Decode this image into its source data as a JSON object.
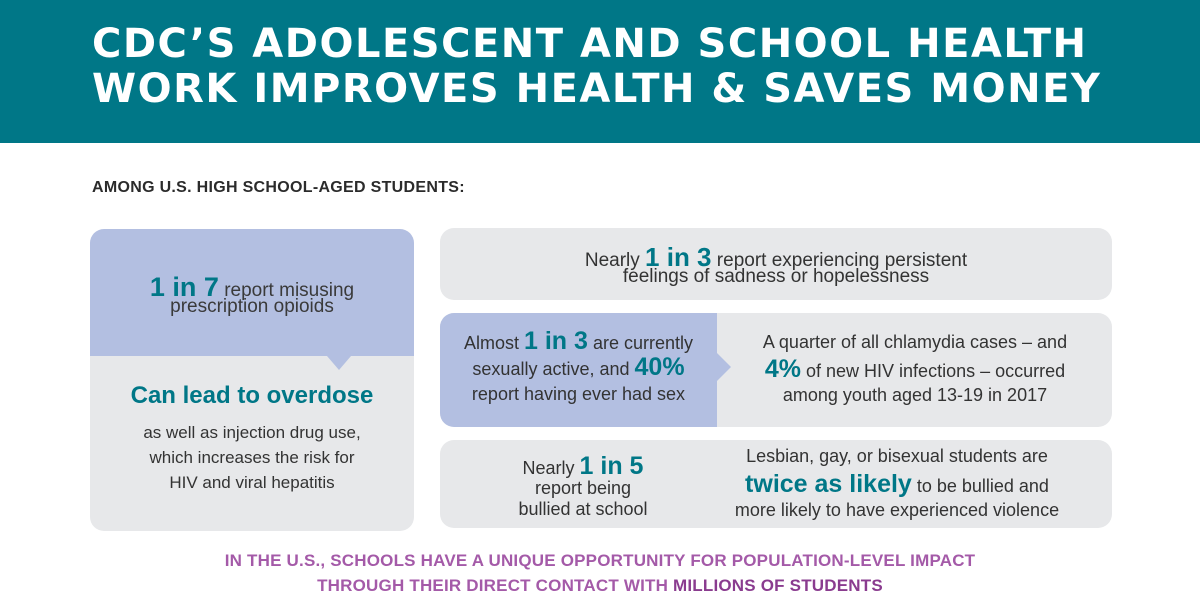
{
  "header": {
    "line1": "CDC’S ADOLESCENT AND SCHOOL HEALTH",
    "line2": "WORK IMPROVES HEALTH & SAVES MONEY"
  },
  "section_label": "AMONG U.S. HIGH SCHOOL-AGED STUDENTS:",
  "opioids_card": {
    "stat": "1 in 7",
    "line1_rest": " report misusing",
    "line2": "prescription opioids",
    "heading": "Can lead to overdose",
    "body1": "as well as injection drug use,",
    "body2": "which increases the risk for",
    "body3": "HIV and viral hepatitis"
  },
  "sadness_card": {
    "pre": "Nearly ",
    "stat": "1 in 3",
    "post": " report experiencing persistent",
    "line2": "feelings of sadness or hopelessness"
  },
  "sex_card": {
    "left_pre": "Almost ",
    "left_stat": "1 in 3",
    "left_post": " are currently",
    "left_line2_pre": "sexually active, and ",
    "left_line2_stat": "40%",
    "left_line3": "report having ever had sex",
    "right_line1": "A quarter of all chlamydia cases – and",
    "right_line2_stat": "4%",
    "right_line2_post": " of new HIV infections – occurred",
    "right_line3": "among youth aged 13-19 in 2017"
  },
  "bullying_card": {
    "left_pre": "Nearly ",
    "left_stat": "1 in 5",
    "left_line2": "report being",
    "left_line3": "bullied at school",
    "right_line1": "Lesbian, gay, or bisexual students are",
    "right_line2_stat": "twice as likely",
    "right_line2_post": " to be bullied and",
    "right_line3": "more likely to have experienced violence"
  },
  "footer": {
    "line1": "IN THE U.S., SCHOOLS HAVE A UNIQUE OPPORTUNITY FOR POPULATION-LEVEL IMPACT",
    "line2_pre": "THROUGH THEIR DIRECT CONTACT WITH ",
    "line2_strong": "MILLIONS OF STUDENTS"
  },
  "colors": {
    "teal": "#007787",
    "lavender": "#b3bfe1",
    "gray": "#e7e8ea",
    "purple": "#a45aa8"
  }
}
